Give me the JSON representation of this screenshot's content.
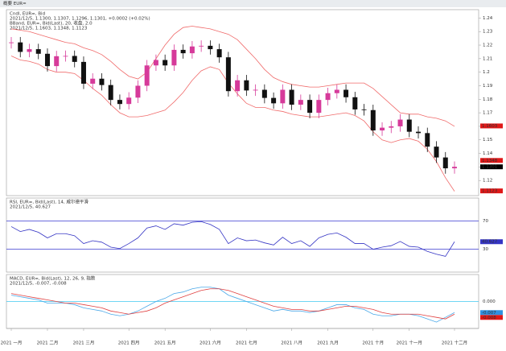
{
  "header": {
    "left": "概要 EUR="
  },
  "chart_data": [
    {
      "type": "candlestick",
      "legend": [
        {
          "text": "Cndl, EUR=, Bid",
          "color": "#000000"
        },
        {
          "text": "2021/12/5, 1.1300, 1.1307, 1.1296, 1.1301, +0.0002 (+0.02%)",
          "color": "#000000"
        },
        {
          "text": "BBand, EUR=, Bid(Last), 20, 收盘, 2.0",
          "color": "#e02020"
        },
        {
          "text": "2021/12/5, 1.1603, 1.1348, 1.1123",
          "color": "#e02020"
        }
      ],
      "categories": [
        "2021 一月",
        null,
        null,
        null,
        "2021 二月",
        null,
        null,
        null,
        "2021 三月",
        null,
        null,
        null,
        null,
        "2021 四月",
        null,
        null,
        null,
        "2021 五月",
        null,
        null,
        null,
        null,
        "2021 六月",
        null,
        null,
        null,
        "2021 七月",
        null,
        null,
        null,
        null,
        "2021 八月",
        null,
        null,
        null,
        "2021 九月",
        null,
        null,
        null,
        null,
        "2021 十月",
        null,
        null,
        null,
        "2021 十一月",
        null,
        null,
        null,
        null,
        "2021 十二月"
      ],
      "open": [
        1.2215,
        1.222,
        1.215,
        1.217,
        1.2136,
        1.2045,
        1.2118,
        1.212,
        1.2076,
        1.1915,
        1.1952,
        1.1905,
        1.1795,
        1.1765,
        1.1812,
        1.19,
        1.205,
        1.209,
        1.205,
        1.2165,
        1.214,
        1.219,
        1.2195,
        1.217,
        1.211,
        1.186,
        1.194,
        1.1865,
        1.187,
        1.181,
        1.177,
        1.187,
        1.176,
        1.1795,
        1.17,
        1.1795,
        1.1845,
        1.187,
        1.1815,
        1.1725,
        1.172,
        1.157,
        1.159,
        1.16,
        1.165,
        1.156,
        1.155,
        1.145,
        1.137,
        1.129
      ],
      "high": [
        1.226,
        1.226,
        1.221,
        1.221,
        1.2176,
        1.2158,
        1.216,
        1.216,
        1.2116,
        1.1992,
        1.1992,
        1.1945,
        1.1835,
        1.1852,
        1.194,
        1.209,
        1.213,
        1.213,
        1.2205,
        1.2205,
        1.223,
        1.2235,
        1.2235,
        1.221,
        1.215,
        1.198,
        1.198,
        1.191,
        1.191,
        1.185,
        1.191,
        1.191,
        1.1835,
        1.1835,
        1.1835,
        1.1885,
        1.191,
        1.191,
        1.1855,
        1.1765,
        1.176,
        1.163,
        1.164,
        1.169,
        1.169,
        1.16,
        1.159,
        1.149,
        1.141,
        1.1341
      ],
      "low": [
        1.2175,
        1.211,
        1.211,
        1.2096,
        1.2005,
        1.2005,
        1.2078,
        1.2036,
        1.1875,
        1.1875,
        1.1865,
        1.1755,
        1.1725,
        1.1725,
        1.1772,
        1.186,
        1.201,
        1.201,
        1.201,
        1.21,
        1.21,
        1.215,
        1.213,
        1.207,
        1.182,
        1.182,
        1.1825,
        1.1825,
        1.177,
        1.173,
        1.173,
        1.172,
        1.172,
        1.166,
        1.166,
        1.1755,
        1.1805,
        1.1775,
        1.1685,
        1.168,
        1.153,
        1.153,
        1.155,
        1.156,
        1.152,
        1.151,
        1.141,
        1.133,
        1.125,
        1.125
      ],
      "close": [
        1.222,
        1.215,
        1.217,
        1.2136,
        1.2045,
        1.2118,
        1.212,
        1.2076,
        1.1915,
        1.1952,
        1.1905,
        1.1795,
        1.1765,
        1.1812,
        1.19,
        1.205,
        1.209,
        1.205,
        1.2165,
        1.214,
        1.219,
        1.2195,
        1.217,
        1.211,
        1.186,
        1.194,
        1.1865,
        1.187,
        1.181,
        1.177,
        1.187,
        1.176,
        1.1795,
        1.17,
        1.1795,
        1.1845,
        1.187,
        1.1815,
        1.1725,
        1.172,
        1.157,
        1.159,
        1.16,
        1.165,
        1.156,
        1.155,
        1.145,
        1.137,
        1.129,
        1.1301
      ],
      "up_color": "#d63a9a",
      "down_color": "#111111",
      "bands": [
        {
          "color": "#f06a6a",
          "values": [
            1.232,
            1.231,
            1.23,
            1.228,
            1.226,
            1.224,
            1.222,
            1.221,
            1.218,
            1.216,
            1.213,
            1.208,
            1.202,
            1.197,
            1.195,
            1.2,
            1.21,
            1.22,
            1.228,
            1.233,
            1.234,
            1.233,
            1.232,
            1.23,
            1.228,
            1.224,
            1.217,
            1.21,
            1.202,
            1.196,
            1.193,
            1.191,
            1.19,
            1.189,
            1.189,
            1.19,
            1.191,
            1.192,
            1.192,
            1.192,
            1.188,
            1.182,
            1.176,
            1.17,
            1.169,
            1.169,
            1.167,
            1.166,
            1.164,
            1.16
          ]
        },
        {
          "color": "#f06a6a",
          "values": [
            1.212,
            1.209,
            1.208,
            1.206,
            1.202,
            1.2,
            1.2,
            1.199,
            1.194,
            1.188,
            1.183,
            1.176,
            1.17,
            1.167,
            1.167,
            1.168,
            1.17,
            1.172,
            1.178,
            1.185,
            1.194,
            1.201,
            1.204,
            1.202,
            1.192,
            1.184,
            1.177,
            1.174,
            1.174,
            1.172,
            1.171,
            1.169,
            1.168,
            1.167,
            1.167,
            1.168,
            1.169,
            1.17,
            1.168,
            1.164,
            1.156,
            1.15,
            1.148,
            1.15,
            1.151,
            1.149,
            1.143,
            1.134,
            1.122,
            1.112
          ]
        }
      ],
      "ylim": [
        1.11,
        1.245
      ],
      "yticks": [
        1.12,
        1.13,
        1.14,
        1.15,
        1.16,
        1.17,
        1.18,
        1.19,
        1.2,
        1.21,
        1.22,
        1.23,
        1.24
      ],
      "markers": [
        {
          "label": "1.1603",
          "value": 1.1603,
          "color": "#e01818"
        },
        {
          "label": "1.1348",
          "value": 1.1348,
          "color": "#e01818"
        },
        {
          "label": "1.1301",
          "value": 1.1301,
          "color": "#000000"
        },
        {
          "label": "1.1123",
          "value": 1.1123,
          "color": "#e01818"
        }
      ]
    },
    {
      "type": "line",
      "legend": [
        {
          "text": "RSI, EUR=, Bid(Last), 14, 威尔德平滑",
          "color": "#1a1aa0"
        },
        {
          "text": "2021/12/5, 40.627",
          "color": "#1a1aa0"
        }
      ],
      "series": [
        {
          "color": "#3434c4",
          "values": [
            62,
            55,
            58,
            54,
            46,
            52,
            52,
            49,
            38,
            42,
            40,
            33,
            31,
            38,
            46,
            60,
            63,
            58,
            66,
            64,
            68,
            69,
            65,
            58,
            38,
            46,
            42,
            43,
            39,
            36,
            47,
            38,
            42,
            34,
            46,
            51,
            53,
            47,
            38,
            38,
            30,
            33,
            35,
            41,
            34,
            33,
            27,
            23,
            20,
            40.627
          ]
        }
      ],
      "ylim": [
        0,
        100
      ],
      "yticks": [
        30,
        70
      ],
      "level_color": "#3a3ad0",
      "markers": [
        {
          "label": "40.627",
          "value": 40.627,
          "color": "#3434c4"
        }
      ]
    },
    {
      "type": "line",
      "legend": [
        {
          "text": "MACD, EUR=, Bid(Last), 12, 26, 9, 指数",
          "color": "#2a8ad0"
        },
        {
          "text": "2021/12/5, -0.007, -0.008",
          "color": "#e02020"
        }
      ],
      "series": [
        {
          "color": "#4aa8e8",
          "values": [
            0.004,
            0.003,
            0.002,
            0.001,
            -0.001,
            -0.001,
            -0.001,
            -0.002,
            -0.004,
            -0.005,
            -0.006,
            -0.008,
            -0.009,
            -0.008,
            -0.006,
            -0.003,
            0.0,
            0.002,
            0.005,
            0.006,
            0.008,
            0.009,
            0.009,
            0.008,
            0.004,
            0.002,
            0.0,
            -0.002,
            -0.004,
            -0.006,
            -0.005,
            -0.006,
            -0.006,
            -0.007,
            -0.006,
            -0.004,
            -0.002,
            -0.002,
            -0.004,
            -0.005,
            -0.008,
            -0.009,
            -0.009,
            -0.008,
            -0.008,
            -0.009,
            -0.011,
            -0.013,
            -0.01,
            -0.007
          ]
        },
        {
          "color": "#e04040",
          "values": [
            0.005,
            0.004,
            0.003,
            0.002,
            0.001,
            0.0,
            -0.001,
            -0.001,
            -0.002,
            -0.003,
            -0.004,
            -0.006,
            -0.007,
            -0.008,
            -0.007,
            -0.006,
            -0.004,
            -0.001,
            0.001,
            0.003,
            0.005,
            0.007,
            0.008,
            0.008,
            0.007,
            0.005,
            0.003,
            0.001,
            -0.001,
            -0.003,
            -0.004,
            -0.005,
            -0.005,
            -0.006,
            -0.006,
            -0.005,
            -0.004,
            -0.003,
            -0.003,
            -0.004,
            -0.005,
            -0.007,
            -0.008,
            -0.008,
            -0.008,
            -0.008,
            -0.009,
            -0.01,
            -0.011,
            -0.008
          ]
        }
      ],
      "ylim": [
        -0.016,
        0.016
      ],
      "yticks": [
        {
          "value": 0,
          "label": "0.000"
        }
      ],
      "level_color": "#40c8f0",
      "markers": [
        {
          "label": "-0.007",
          "value": -0.007,
          "color": "#3090e0"
        },
        {
          "label": "-0.008",
          "value": -0.008,
          "color": "#e01818"
        }
      ]
    }
  ]
}
